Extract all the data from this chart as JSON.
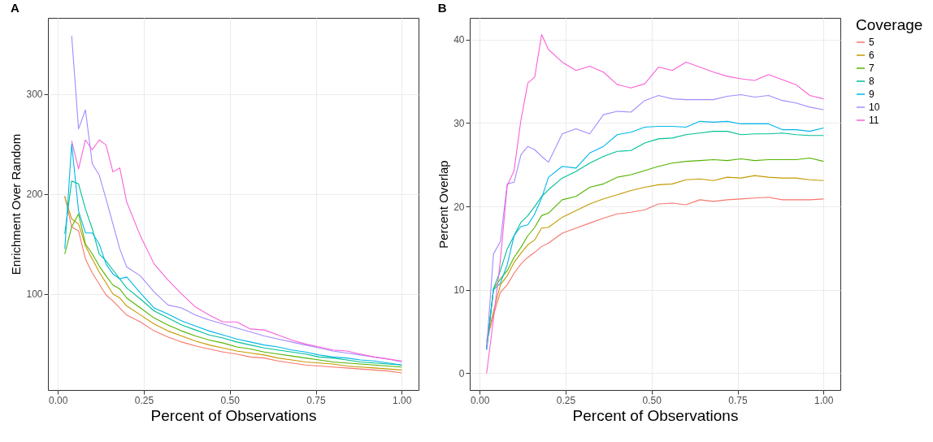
{
  "chart_data": [
    {
      "type": "line",
      "title": "A",
      "xlabel": "Percent of Observations",
      "ylabel": "Enrichment Over Random",
      "xlim": [
        -0.029,
        1.049
      ],
      "ylim": [
        4,
        376
      ],
      "xticks": [
        {
          "value": 0,
          "label": "0.00"
        },
        {
          "value": 0.25,
          "label": "0.25"
        },
        {
          "value": 0.5,
          "label": "0.50"
        },
        {
          "value": 0.75,
          "label": "0.75"
        },
        {
          "value": 1,
          "label": "1.00"
        }
      ],
      "yticks": [
        100,
        200,
        300
      ],
      "grid": true,
      "legend": "right",
      "x": [
        0.02,
        0.04,
        0.06,
        0.08,
        0.1,
        0.12,
        0.14,
        0.16,
        0.18,
        0.2,
        0.24,
        0.28,
        0.32,
        0.36,
        0.4,
        0.44,
        0.48,
        0.52,
        0.56,
        0.6,
        0.64,
        0.68,
        0.72,
        0.76,
        0.8,
        0.84,
        0.88,
        0.92,
        0.96,
        1
      ],
      "series": [
        {
          "name": "5",
          "color": "#f8766d",
          "values": [
            198,
            167,
            163,
            135,
            121,
            110,
            99,
            93,
            86,
            79,
            72,
            63,
            57,
            52,
            48,
            45,
            42,
            40,
            37,
            36,
            33,
            31,
            29,
            28,
            27,
            26,
            25,
            24,
            23,
            21
          ]
        },
        {
          "name": "6",
          "color": "#c49a00",
          "values": [
            197,
            175,
            170,
            148,
            135,
            122,
            111,
            100,
            96,
            88,
            79,
            70,
            63,
            58,
            53,
            49,
            46,
            43,
            41,
            39,
            36,
            34,
            32,
            31,
            30,
            28,
            27,
            26,
            25,
            24
          ]
        },
        {
          "name": "7",
          "color": "#53b400",
          "values": [
            140,
            167,
            180,
            150,
            140,
            128,
            118,
            109,
            105,
            96,
            86,
            76,
            69,
            63,
            58,
            54,
            51,
            47,
            45,
            42,
            40,
            38,
            36,
            34,
            32,
            31,
            30,
            29,
            28,
            27
          ]
        },
        {
          "name": "8",
          "color": "#00c094",
          "values": [
            160,
            213,
            210,
            185,
            165,
            140,
            133,
            124,
            115,
            106,
            95,
            83,
            76,
            69,
            64,
            59,
            56,
            52,
            49,
            46,
            44,
            42,
            40,
            37,
            36,
            34,
            32,
            31,
            30,
            29
          ]
        },
        {
          "name": "9",
          "color": "#00b6eb",
          "values": [
            145,
            250,
            183,
            161,
            161,
            150,
            130,
            120,
            115,
            117,
            101,
            86,
            80,
            73,
            68,
            63,
            59,
            55,
            52,
            49,
            47,
            44,
            42,
            39,
            37,
            36,
            34,
            33,
            31,
            29
          ]
        },
        {
          "name": "10",
          "color": "#a58aff",
          "values": [
            null,
            358,
            265,
            284,
            230,
            219,
            195,
            170,
            145,
            127,
            118,
            102,
            89,
            86,
            79,
            74,
            70,
            66,
            62,
            58,
            55,
            52,
            49,
            46,
            43,
            41,
            39,
            37,
            35,
            32
          ]
        },
        {
          "name": "11",
          "color": "#fb61d7",
          "values": [
            null,
            253,
            225,
            254,
            244,
            254,
            249,
            222,
            226,
            192,
            158,
            130,
            114,
            100,
            87,
            79,
            72,
            72,
            65,
            64,
            59,
            54,
            50,
            47,
            44,
            43,
            40,
            37,
            35,
            33
          ]
        }
      ]
    },
    {
      "type": "line",
      "title": "B",
      "xlabel": "Percent of Observations",
      "ylabel": "Percent Overlap",
      "legend_title": "Coverage",
      "xlim": [
        -0.029,
        1.049
      ],
      "ylim": [
        -2,
        42.6
      ],
      "xticks": [
        {
          "value": 0,
          "label": "0.00"
        },
        {
          "value": 0.25,
          "label": "0.25"
        },
        {
          "value": 0.5,
          "label": "0.50"
        },
        {
          "value": 0.75,
          "label": "0.75"
        },
        {
          "value": 1,
          "label": "1.00"
        }
      ],
      "yticks": [
        0,
        10,
        20,
        30,
        40
      ],
      "grid": true,
      "legend": "right",
      "x": [
        0.02,
        0.04,
        0.06,
        0.08,
        0.1,
        0.12,
        0.14,
        0.16,
        0.18,
        0.2,
        0.24,
        0.28,
        0.32,
        0.36,
        0.4,
        0.44,
        0.48,
        0.52,
        0.56,
        0.6,
        0.64,
        0.68,
        0.72,
        0.76,
        0.8,
        0.84,
        0.88,
        0.92,
        0.96,
        1
      ],
      "series": [
        {
          "name": "5",
          "color": "#f8766d",
          "values": [
            3.7,
            7,
            9.7,
            10.6,
            12,
            13.1,
            13.9,
            14.5,
            15.2,
            15.6,
            16.8,
            17.4,
            18,
            18.6,
            19.1,
            19.3,
            19.6,
            20.3,
            20.4,
            20.2,
            20.8,
            20.6,
            20.8,
            20.9,
            21,
            21.1,
            20.8,
            20.8,
            20.8,
            20.9
          ]
        },
        {
          "name": "6",
          "color": "#c49a00",
          "values": [
            3.9,
            7.4,
            10.6,
            11.7,
            13.3,
            14.4,
            15.4,
            16,
            17.4,
            17.5,
            18.7,
            19.5,
            20.3,
            20.9,
            21.4,
            21.9,
            22.3,
            22.6,
            22.7,
            23.2,
            23.3,
            23.1,
            23.5,
            23.4,
            23.7,
            23.5,
            23.4,
            23.4,
            23.2,
            23.1
          ]
        },
        {
          "name": "7",
          "color": "#53b400",
          "values": [
            3.1,
            10.1,
            11.3,
            12.3,
            13.9,
            15.1,
            16.5,
            17.5,
            18.9,
            19.2,
            20.8,
            21.2,
            22.3,
            22.7,
            23.5,
            23.8,
            24.3,
            24.8,
            25.2,
            25.4,
            25.5,
            25.6,
            25.5,
            25.7,
            25.5,
            25.6,
            25.6,
            25.6,
            25.8,
            25.4
          ]
        },
        {
          "name": "8",
          "color": "#00c094",
          "values": [
            2.9,
            10.1,
            12.3,
            14.9,
            16.5,
            18.1,
            18.9,
            20,
            21.2,
            22,
            23.4,
            24.2,
            25.2,
            26,
            26.6,
            26.7,
            27.6,
            28.1,
            28.2,
            28.6,
            28.8,
            29,
            29,
            28.6,
            28.7,
            28.7,
            28.8,
            28.6,
            28.5,
            28.5
          ]
        },
        {
          "name": "9",
          "color": "#00b6eb",
          "values": [
            2.8,
            10,
            10.8,
            13,
            16.5,
            17.6,
            17.8,
            19.1,
            21,
            23.5,
            24.8,
            24.6,
            26.4,
            27.2,
            28.6,
            28.9,
            29.5,
            29.6,
            29.6,
            29.5,
            30.2,
            30.1,
            30.2,
            29.9,
            29.9,
            29.9,
            29.2,
            29.2,
            29,
            29.4
          ]
        },
        {
          "name": "10",
          "color": "#a58aff",
          "values": [
            3,
            14.3,
            15.8,
            22.7,
            22.9,
            26.2,
            27.2,
            26.8,
            26,
            25.3,
            28.7,
            29.3,
            28.7,
            31,
            31.4,
            31.3,
            32.7,
            33.3,
            32.9,
            32.8,
            32.8,
            32.8,
            33.2,
            33.4,
            33.1,
            33.3,
            32.7,
            32.4,
            31.9,
            31.6
          ]
        },
        {
          "name": "11",
          "color": "#fb61d7",
          "values": [
            0,
            6.5,
            13.5,
            22.5,
            24.3,
            30.4,
            34.8,
            35.5,
            40.6,
            38.8,
            37.3,
            36.3,
            36.8,
            36.1,
            34.6,
            34.2,
            34.7,
            36.7,
            36.3,
            37.3,
            36.7,
            36.1,
            35.6,
            35.3,
            35.1,
            35.8,
            35.2,
            34.6,
            33.3,
            32.9
          ]
        }
      ]
    }
  ]
}
